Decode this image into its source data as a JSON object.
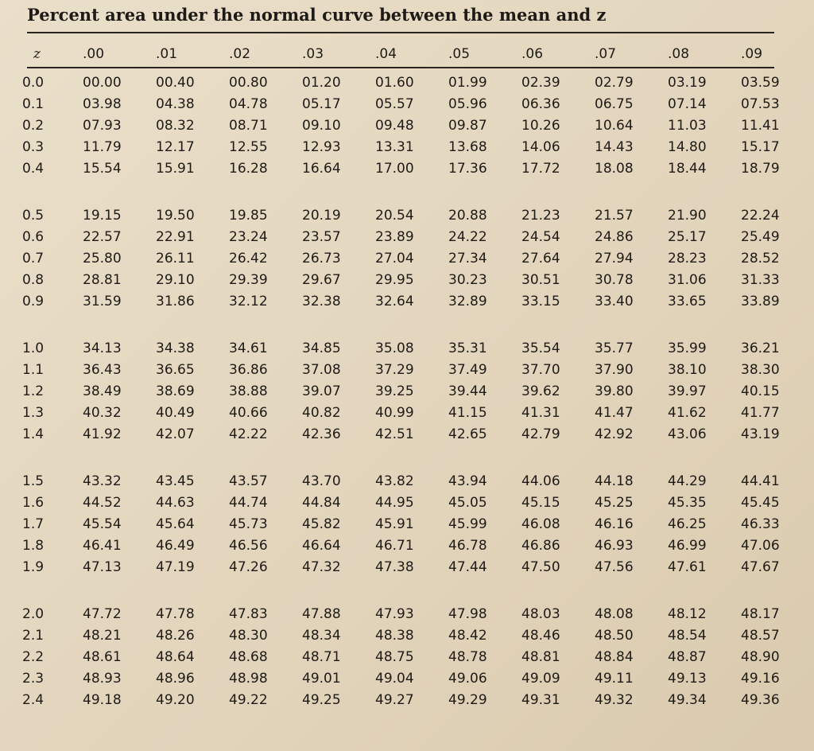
{
  "title": "Percent area under the normal curve between the mean and z",
  "table": {
    "header": [
      "z",
      ".00",
      ".01",
      ".02",
      ".03",
      ".04",
      ".05",
      ".06",
      ".07",
      ".08",
      ".09"
    ],
    "rows": [
      [
        "0.0",
        "00.00",
        "00.40",
        "00.80",
        "01.20",
        "01.60",
        "01.99",
        "02.39",
        "02.79",
        "03.19",
        "03.59"
      ],
      [
        "0.1",
        "03.98",
        "04.38",
        "04.78",
        "05.17",
        "05.57",
        "05.96",
        "06.36",
        "06.75",
        "07.14",
        "07.53"
      ],
      [
        "0.2",
        "07.93",
        "08.32",
        "08.71",
        "09.10",
        "09.48",
        "09.87",
        "10.26",
        "10.64",
        "11.03",
        "11.41"
      ],
      [
        "0.3",
        "11.79",
        "12.17",
        "12.55",
        "12.93",
        "13.31",
        "13.68",
        "14.06",
        "14.43",
        "14.80",
        "15.17"
      ],
      [
        "0.4",
        "15.54",
        "15.91",
        "16.28",
        "16.64",
        "17.00",
        "17.36",
        "17.72",
        "18.08",
        "18.44",
        "18.79"
      ],
      [
        "0.5",
        "19.15",
        "19.50",
        "19.85",
        "20.19",
        "20.54",
        "20.88",
        "21.23",
        "21.57",
        "21.90",
        "22.24"
      ],
      [
        "0.6",
        "22.57",
        "22.91",
        "23.24",
        "23.57",
        "23.89",
        "24.22",
        "24.54",
        "24.86",
        "25.17",
        "25.49"
      ],
      [
        "0.7",
        "25.80",
        "26.11",
        "26.42",
        "26.73",
        "27.04",
        "27.34",
        "27.64",
        "27.94",
        "28.23",
        "28.52"
      ],
      [
        "0.8",
        "28.81",
        "29.10",
        "29.39",
        "29.67",
        "29.95",
        "30.23",
        "30.51",
        "30.78",
        "31.06",
        "31.33"
      ],
      [
        "0.9",
        "31.59",
        "31.86",
        "32.12",
        "32.38",
        "32.64",
        "32.89",
        "33.15",
        "33.40",
        "33.65",
        "33.89"
      ],
      [
        "1.0",
        "34.13",
        "34.38",
        "34.61",
        "34.85",
        "35.08",
        "35.31",
        "35.54",
        "35.77",
        "35.99",
        "36.21"
      ],
      [
        "1.1",
        "36.43",
        "36.65",
        "36.86",
        "37.08",
        "37.29",
        "37.49",
        "37.70",
        "37.90",
        "38.10",
        "38.30"
      ],
      [
        "1.2",
        "38.49",
        "38.69",
        "38.88",
        "39.07",
        "39.25",
        "39.44",
        "39.62",
        "39.80",
        "39.97",
        "40.15"
      ],
      [
        "1.3",
        "40.32",
        "40.49",
        "40.66",
        "40.82",
        "40.99",
        "41.15",
        "41.31",
        "41.47",
        "41.62",
        "41.77"
      ],
      [
        "1.4",
        "41.92",
        "42.07",
        "42.22",
        "42.36",
        "42.51",
        "42.65",
        "42.79",
        "42.92",
        "43.06",
        "43.19"
      ],
      [
        "1.5",
        "43.32",
        "43.45",
        "43.57",
        "43.70",
        "43.82",
        "43.94",
        "44.06",
        "44.18",
        "44.29",
        "44.41"
      ],
      [
        "1.6",
        "44.52",
        "44.63",
        "44.74",
        "44.84",
        "44.95",
        "45.05",
        "45.15",
        "45.25",
        "45.35",
        "45.45"
      ],
      [
        "1.7",
        "45.54",
        "45.64",
        "45.73",
        "45.82",
        "45.91",
        "45.99",
        "46.08",
        "46.16",
        "46.25",
        "46.33"
      ],
      [
        "1.8",
        "46.41",
        "46.49",
        "46.56",
        "46.64",
        "46.71",
        "46.78",
        "46.86",
        "46.93",
        "46.99",
        "47.06"
      ],
      [
        "1.9",
        "47.13",
        "47.19",
        "47.26",
        "47.32",
        "47.38",
        "47.44",
        "47.50",
        "47.56",
        "47.61",
        "47.67"
      ],
      [
        "2.0",
        "47.72",
        "47.78",
        "47.83",
        "47.88",
        "47.93",
        "47.98",
        "48.03",
        "48.08",
        "48.12",
        "48.17"
      ],
      [
        "2.1",
        "48.21",
        "48.26",
        "48.30",
        "48.34",
        "48.38",
        "48.42",
        "48.46",
        "48.50",
        "48.54",
        "48.57"
      ],
      [
        "2.2",
        "48.61",
        "48.64",
        "48.68",
        "48.71",
        "48.75",
        "48.78",
        "48.81",
        "48.84",
        "48.87",
        "48.90"
      ],
      [
        "2.3",
        "48.93",
        "48.96",
        "48.98",
        "49.01",
        "49.04",
        "49.06",
        "49.09",
        "49.11",
        "49.13",
        "49.16"
      ],
      [
        "2.4",
        "49.18",
        "49.20",
        "49.22",
        "49.25",
        "49.27",
        "49.29",
        "49.31",
        "49.32",
        "49.34",
        "49.36"
      ]
    ]
  }
}
